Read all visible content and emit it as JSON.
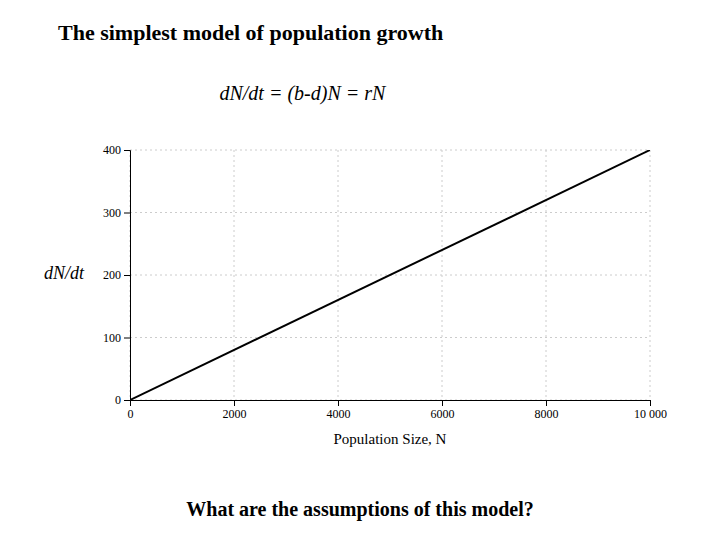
{
  "chart_data": {
    "type": "line",
    "title": "The simplest model of population growth",
    "subtitle": "What are the assumptions of this model?",
    "annotations": [
      "dN/dt = (b-d)N = rN"
    ],
    "xlabel": "Population Size, N",
    "ylabel": "dN/dt",
    "x": [
      0,
      10000
    ],
    "values": [
      0,
      400
    ],
    "color": "#000000",
    "xlim": [
      0,
      10000
    ],
    "ylim": [
      0,
      400
    ],
    "xticks": [
      0,
      2000,
      4000,
      6000,
      8000,
      {
        "value": 10000,
        "label": "10 000"
      }
    ],
    "yticks": [
      0,
      100,
      200,
      300,
      400
    ],
    "grid": true
  }
}
